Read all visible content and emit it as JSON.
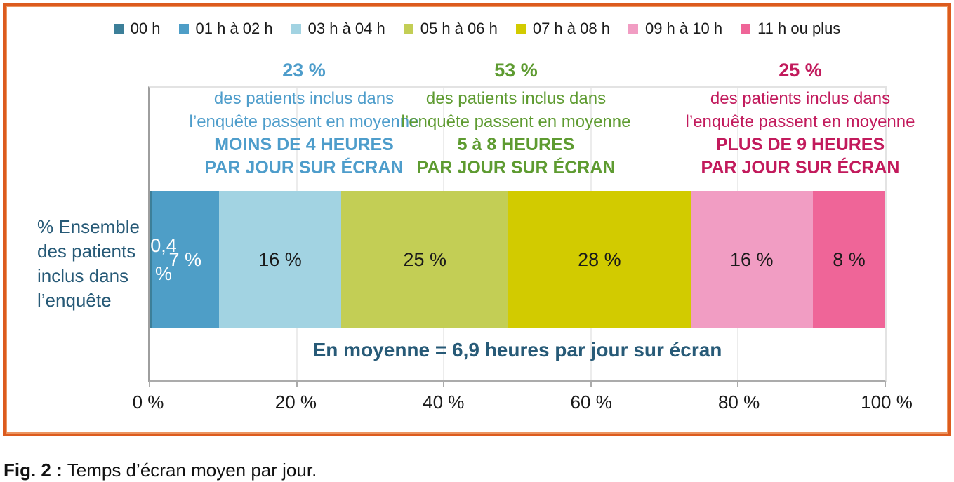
{
  "chart_data": {
    "type": "bar",
    "orientation": "horizontal-stacked",
    "title": "",
    "categories": [
      "00 h",
      "01 h à 02 h",
      "03 h à 04 h",
      "05 h à 06 h",
      "07 h à 08 h",
      "09 h à 10 h",
      "11 h ou plus"
    ],
    "values": [
      0.4,
      7,
      16,
      25,
      28,
      16,
      8
    ],
    "labels": [
      "0,4 %",
      "7 %",
      "16 %",
      "25 %",
      "28 %",
      "16 %",
      "8 %"
    ],
    "series_colors": [
      "#3C7F99",
      "#4E9EC7",
      "#A2D3E2",
      "#C3CE55",
      "#D2CB00",
      "#F19DC3",
      "#EF6598"
    ],
    "row_label": "% Ensemble des patients inclus dans l’enquête",
    "x_ticks": [
      "0 %",
      "20 %",
      "40 %",
      "60 %",
      "80 %",
      "100 %"
    ],
    "xlim": [
      0,
      100
    ],
    "grid": "vertical-light",
    "legend_position": "top",
    "average_note": "En moyenne = 6,9 heures par jour sur écran"
  },
  "legend": {
    "items": [
      {
        "label": "00 h",
        "color": "#3C7F99"
      },
      {
        "label": "01 h à 02 h",
        "color": "#4E9EC7"
      },
      {
        "label": "03 h à 04 h",
        "color": "#A2D3E2"
      },
      {
        "label": "05 h à 06 h",
        "color": "#C3CE55"
      },
      {
        "label": "07 h à 08 h",
        "color": "#D2CB00"
      },
      {
        "label": "09 h à 10 h",
        "color": "#F19DC3"
      },
      {
        "label": "11 h ou plus",
        "color": "#EF6598"
      }
    ]
  },
  "annotations": [
    {
      "pct": "23 %",
      "line1": "des patients inclus dans",
      "line2": "l’enquête passent en moyenne",
      "strong1": "MOINS DE 4 HEURES",
      "strong2": "PAR JOUR SUR ÉCRAN",
      "color": "#4E9DCB"
    },
    {
      "pct": "53 %",
      "line1": "des patients inclus dans",
      "line2": "l’enquête passent en moyenne",
      "strong1": "5 à 8 HEURES",
      "strong2": "PAR JOUR SUR ÉCRAN",
      "color": "#5E9B31"
    },
    {
      "pct": "25 %",
      "line1": "des patients inclus dans",
      "line2": "l’enquête passent en moyenne",
      "strong1": "PLUS DE 9 HEURES",
      "strong2": "PAR JOUR SUR ÉCRAN",
      "color": "#C21A5C"
    }
  ],
  "y_axis_label": {
    "lines": [
      "% Ensemble",
      "des patients",
      "inclus dans",
      "l’enquête"
    ],
    "color": "#275A77"
  },
  "caption": {
    "prefix": "Fig. 2 :",
    "text": "Temps d’écran moyen par jour."
  },
  "frame_color": "#DC5B1E"
}
